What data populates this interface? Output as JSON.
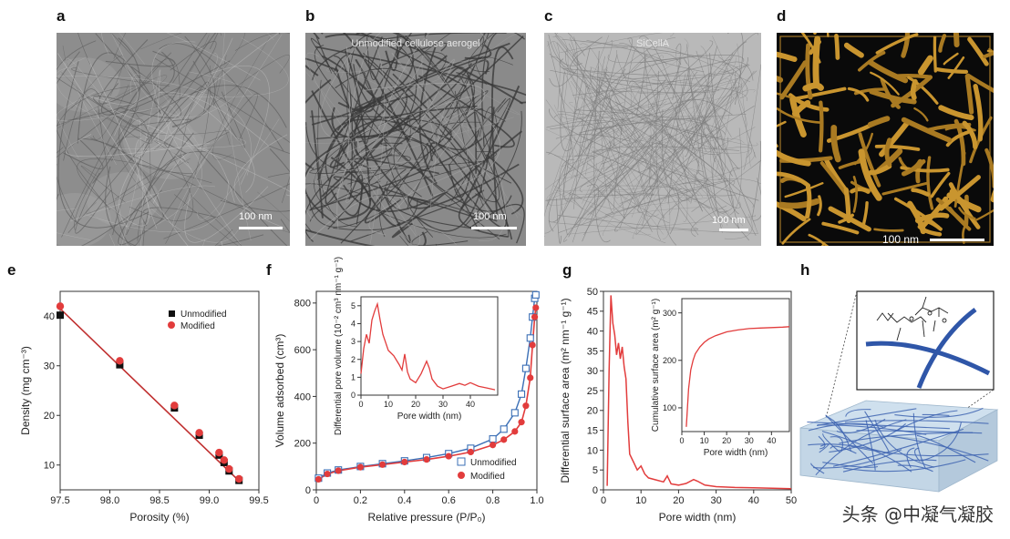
{
  "panels": {
    "a": {
      "label": "a",
      "scale_bar": "100 nm"
    },
    "b": {
      "label": "b",
      "caption": "Unmodified cellulose aerogel",
      "scale_bar": "100 nm"
    },
    "c": {
      "label": "c",
      "caption": "SiCellA",
      "scale_bar": "100 nm"
    },
    "d": {
      "label": "d",
      "scale_bar": "100 nm"
    },
    "e": {
      "label": "e"
    },
    "f": {
      "label": "f"
    },
    "g": {
      "label": "g"
    },
    "h": {
      "label": "h"
    }
  },
  "colors": {
    "modified": "#e23c3c",
    "unmodified_square": "#111111",
    "unmodified_line": "#3b6fb6",
    "aerogel_3d": "#c9952f",
    "fiber": "#3d63b0"
  },
  "watermark": "头条 @中凝气凝胶",
  "chart_data": [
    {
      "id": "e",
      "type": "scatter",
      "xlabel": "Porosity (%)",
      "ylabel": "Density (mg cm⁻³)",
      "xlim": [
        97.5,
        99.5
      ],
      "ylim": [
        5,
        45
      ],
      "xticks": [
        "97.5",
        "98.0",
        "98.5",
        "99.0",
        "99.5"
      ],
      "yticks": [
        "10",
        "20",
        "30",
        "40"
      ],
      "series": [
        {
          "name": "Unmodified",
          "marker": "square",
          "x": [
            97.5,
            98.1,
            98.65,
            98.9,
            99.1,
            99.15,
            99.2,
            99.3
          ],
          "y": [
            40.2,
            30.2,
            21.5,
            16.0,
            12.0,
            10.5,
            8.8,
            6.9
          ]
        },
        {
          "name": "Modified",
          "marker": "circle",
          "x": [
            97.5,
            98.1,
            98.65,
            98.9,
            99.1,
            99.15,
            99.2,
            99.3
          ],
          "y": [
            42.0,
            31.0,
            22.0,
            16.5,
            12.5,
            11.0,
            9.2,
            7.2
          ]
        }
      ],
      "fit": {
        "x": [
          97.5,
          99.3
        ],
        "y": [
          41.5,
          6.8
        ]
      }
    },
    {
      "id": "f",
      "type": "line",
      "xlabel": "Relative pressure (P/P₀)",
      "ylabel": "Volume adsorbed (cm³)",
      "xlim": [
        0,
        1.0
      ],
      "ylim": [
        0,
        850
      ],
      "xticks": [
        "0",
        "0.2",
        "0.4",
        "0.6",
        "0.8",
        "1.0"
      ],
      "yticks": [
        "0",
        "200",
        "400",
        "600",
        "800"
      ],
      "series": [
        {
          "name": "Unmodified",
          "x": [
            0.01,
            0.05,
            0.1,
            0.2,
            0.3,
            0.4,
            0.5,
            0.6,
            0.7,
            0.8,
            0.85,
            0.9,
            0.93,
            0.95,
            0.97,
            0.98,
            0.99,
            0.995
          ],
          "y": [
            50,
            72,
            85,
            100,
            112,
            124,
            138,
            155,
            178,
            218,
            260,
            330,
            410,
            520,
            650,
            740,
            820,
            835
          ]
        },
        {
          "name": "Modified",
          "x": [
            0.01,
            0.05,
            0.1,
            0.2,
            0.3,
            0.4,
            0.5,
            0.6,
            0.7,
            0.8,
            0.85,
            0.9,
            0.93,
            0.95,
            0.97,
            0.98,
            0.99,
            0.995
          ],
          "y": [
            45,
            68,
            82,
            97,
            108,
            119,
            130,
            144,
            162,
            192,
            215,
            250,
            290,
            360,
            480,
            620,
            740,
            780
          ]
        }
      ],
      "legend": [
        "Unmodified",
        "Modified"
      ],
      "inset": {
        "xlabel": "Pore width (nm)",
        "ylabel": "Differential pore volume (10⁻² cm³ nm⁻¹ g⁻¹)",
        "xlim": [
          0,
          50
        ],
        "ylim": [
          0,
          5.5
        ],
        "xticks": [
          "0",
          "10",
          "20",
          "30",
          "40"
        ],
        "yticks": [
          "0",
          "1",
          "2",
          "3",
          "4",
          "5"
        ],
        "x": [
          0,
          1,
          2,
          3,
          4,
          5,
          6,
          7,
          8,
          10,
          12,
          14,
          15,
          16,
          17,
          18,
          20,
          22,
          24,
          25,
          26,
          28,
          30,
          33,
          36,
          38,
          40,
          43,
          46,
          49
        ],
        "y": [
          1.2,
          2.6,
          3.4,
          2.9,
          4.2,
          4.7,
          5.1,
          4.2,
          3.4,
          2.5,
          2.2,
          1.7,
          1.4,
          2.3,
          1.3,
          0.9,
          0.7,
          1.2,
          1.9,
          1.5,
          0.9,
          0.5,
          0.35,
          0.5,
          0.65,
          0.55,
          0.7,
          0.5,
          0.4,
          0.3
        ]
      }
    },
    {
      "id": "g",
      "type": "line",
      "xlabel": "Pore width (nm)",
      "ylabel": "Differential surface area (m² nm⁻¹ g⁻¹)",
      "xlim": [
        0,
        50
      ],
      "ylim": [
        0,
        50
      ],
      "xticks": [
        "0",
        "10",
        "20",
        "30",
        "40",
        "50"
      ],
      "yticks": [
        "0",
        "5",
        "10",
        "15",
        "20",
        "25",
        "30",
        "35",
        "40",
        "45",
        "50"
      ],
      "x": [
        1,
        1.5,
        2,
        2.5,
        3,
        3.5,
        4,
        4.5,
        5,
        5.5,
        6,
        6.5,
        7,
        8,
        9,
        10,
        11,
        12,
        14,
        16,
        17,
        18,
        20,
        22,
        24,
        25,
        27,
        30,
        35,
        40,
        45,
        50
      ],
      "y": [
        1,
        30,
        49,
        42,
        39,
        34,
        37,
        33,
        36,
        31,
        28,
        17,
        9,
        7,
        5,
        6,
        4,
        3,
        2.5,
        2,
        3.5,
        1.5,
        1.2,
        1.6,
        2.6,
        2.2,
        1.2,
        0.8,
        0.6,
        0.5,
        0.4,
        0.3
      ],
      "inset": {
        "xlabel": "Pore width (nm)",
        "ylabel": "Cumulative surface area (m² g⁻¹)",
        "xlim": [
          0,
          48
        ],
        "ylim": [
          50,
          330
        ],
        "xticks": [
          "0",
          "10",
          "20",
          "30",
          "40"
        ],
        "yticks": [
          "100",
          "200",
          "300"
        ],
        "x": [
          2,
          3,
          4,
          5,
          6,
          8,
          10,
          12,
          15,
          20,
          25,
          30,
          35,
          40,
          45,
          48
        ],
        "y": [
          60,
          140,
          180,
          200,
          214,
          228,
          238,
          245,
          252,
          260,
          264,
          267,
          268,
          269,
          270,
          271
        ]
      }
    }
  ]
}
